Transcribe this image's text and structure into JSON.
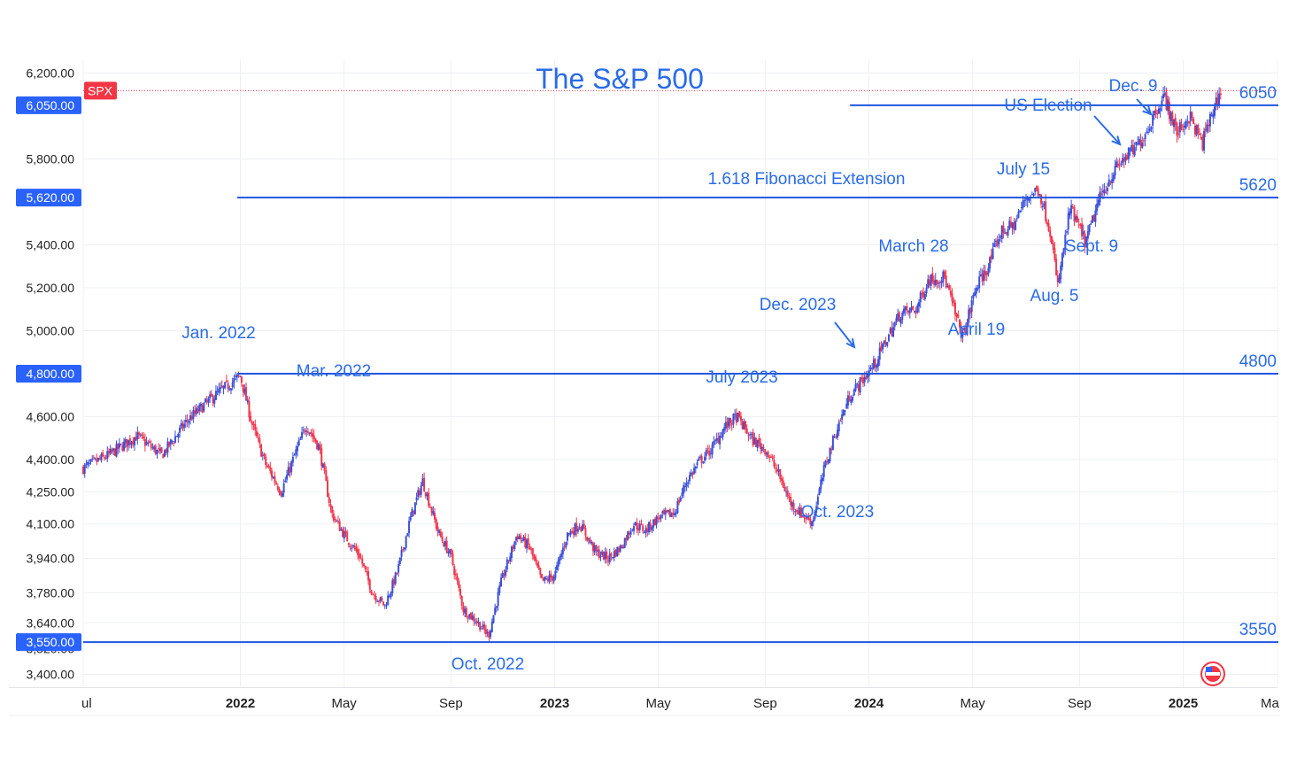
{
  "chart_data": {
    "type": "candlestick",
    "title": "The S&P 500",
    "ticker": "SPX",
    "colors": {
      "up": "#3b4fd9",
      "down": "#f0364d",
      "level_line": "#1f55e0",
      "annotation": "#2a6be8",
      "axis_text": "#222222",
      "grid": "#eef0f3",
      "ticker_badge": "#f23645",
      "price_badge": "#2962ff"
    },
    "y_axis": {
      "range": [
        3340,
        6260
      ],
      "ticks": [
        "6,200.00",
        "5,800.00",
        "5,400.00",
        "5,200.00",
        "5,000.00",
        "4,600.00",
        "4,400.00",
        "4,250.00",
        "4,100.00",
        "3,940.00",
        "3,780.00",
        "3,640.00",
        "3,400.00"
      ],
      "tick_values": [
        6200,
        5800,
        5400,
        5200,
        5000,
        4600,
        4400,
        4250,
        4100,
        3940,
        3780,
        3640,
        3400
      ],
      "partial_tick": "3,520.00",
      "badges": [
        "6,050.00",
        "5,620.00",
        "4,800.00",
        "3,550.00"
      ],
      "badge_values": [
        6050,
        5620,
        4800,
        3550
      ]
    },
    "x_axis": {
      "range": [
        2021.5,
        2025.3
      ],
      "ticks": [
        "ul",
        "2022",
        "May",
        "Sep",
        "2023",
        "May",
        "Sep",
        "2024",
        "May",
        "Sep",
        "2025",
        "Ma"
      ],
      "tick_values": [
        2021.5,
        2022.0,
        2022.33,
        2022.67,
        2023.0,
        2023.33,
        2023.67,
        2024.0,
        2024.33,
        2024.67,
        2025.0,
        2025.3
      ],
      "bold_ticks": [
        "2022",
        "2023",
        "2024",
        "2025"
      ]
    },
    "levels": [
      {
        "value": 6050,
        "label": "6050",
        "x_start": 2023.94
      },
      {
        "value": 5620,
        "label": "5620",
        "x_start": 2021.99
      },
      {
        "value": 4800,
        "label": "4800",
        "x_start": 2021.99
      },
      {
        "value": 3550,
        "label": "3550",
        "x_start": 2021.5
      }
    ],
    "last_price": 6118,
    "annotations": [
      {
        "text": "Jan. 2022",
        "x": 2022.0,
        "price": 4810
      },
      {
        "text": "Mar. 2022",
        "x": 2022.2,
        "price": 4630
      },
      {
        "text": "Oct. 2022",
        "x": 2022.79,
        "price": 3500
      },
      {
        "text": "July 2023",
        "x": 2023.58,
        "price": 4600
      },
      {
        "text": "Oct. 2023",
        "x": 2023.82,
        "price": 4110
      },
      {
        "text": "Dec. 2023",
        "x": 2023.95,
        "price": 4810
      },
      {
        "text": "March 28",
        "x": 2024.24,
        "price": 5250
      },
      {
        "text": "April 19",
        "x": 2024.3,
        "price": 4970
      },
      {
        "text": "July 15",
        "x": 2024.54,
        "price": 5670
      },
      {
        "text": "Aug. 5",
        "x": 2024.6,
        "price": 5150
      },
      {
        "text": "Sept. 9",
        "x": 2024.69,
        "price": 5410
      },
      {
        "text": "1.618 Fibonacci Extension",
        "x": 2023.78,
        "price": 5620
      },
      {
        "text": "US Election",
        "x": 2024.84,
        "price": 5860
      },
      {
        "text": "Dec. 9",
        "x": 2024.94,
        "price": 6100
      }
    ],
    "series": [
      {
        "name": "SPX",
        "x": [
          2021.5,
          2021.58,
          2021.67,
          2021.75,
          2021.83,
          2021.92,
          2022.0,
          2022.04,
          2022.08,
          2022.13,
          2022.17,
          2022.21,
          2022.25,
          2022.29,
          2022.33,
          2022.38,
          2022.42,
          2022.46,
          2022.5,
          2022.54,
          2022.58,
          2022.63,
          2022.67,
          2022.71,
          2022.75,
          2022.79,
          2022.83,
          2022.88,
          2022.92,
          2022.96,
          2023.0,
          2023.04,
          2023.08,
          2023.13,
          2023.17,
          2023.21,
          2023.25,
          2023.29,
          2023.33,
          2023.38,
          2023.42,
          2023.46,
          2023.5,
          2023.54,
          2023.58,
          2023.63,
          2023.67,
          2023.71,
          2023.75,
          2023.79,
          2023.82,
          2023.86,
          2023.9,
          2023.94,
          2023.98,
          2024.02,
          2024.06,
          2024.1,
          2024.15,
          2024.19,
          2024.24,
          2024.28,
          2024.3,
          2024.34,
          2024.38,
          2024.42,
          2024.46,
          2024.5,
          2024.54,
          2024.58,
          2024.6,
          2024.64,
          2024.69,
          2024.73,
          2024.77,
          2024.81,
          2024.85,
          2024.89,
          2024.92,
          2024.94,
          2024.98,
          2025.02,
          2025.06,
          2025.1,
          2025.12
        ],
        "close": [
          4360,
          4420,
          4510,
          4420,
          4580,
          4700,
          4790,
          4550,
          4380,
          4250,
          4410,
          4560,
          4460,
          4150,
          4050,
          3950,
          3780,
          3720,
          3880,
          4120,
          4300,
          4060,
          3950,
          3700,
          3650,
          3580,
          3830,
          4050,
          3990,
          3830,
          3860,
          4050,
          4100,
          3970,
          3940,
          3990,
          4100,
          4070,
          4130,
          4150,
          4300,
          4390,
          4450,
          4550,
          4600,
          4490,
          4450,
          4340,
          4200,
          4140,
          4110,
          4370,
          4550,
          4700,
          4770,
          4850,
          4970,
          5080,
          5100,
          5240,
          5250,
          5050,
          4970,
          5200,
          5300,
          5460,
          5490,
          5620,
          5660,
          5450,
          5200,
          5570,
          5410,
          5600,
          5720,
          5800,
          5850,
          5950,
          6050,
          6090,
          5920,
          6000,
          5870,
          6050,
          6118
        ]
      }
    ]
  }
}
